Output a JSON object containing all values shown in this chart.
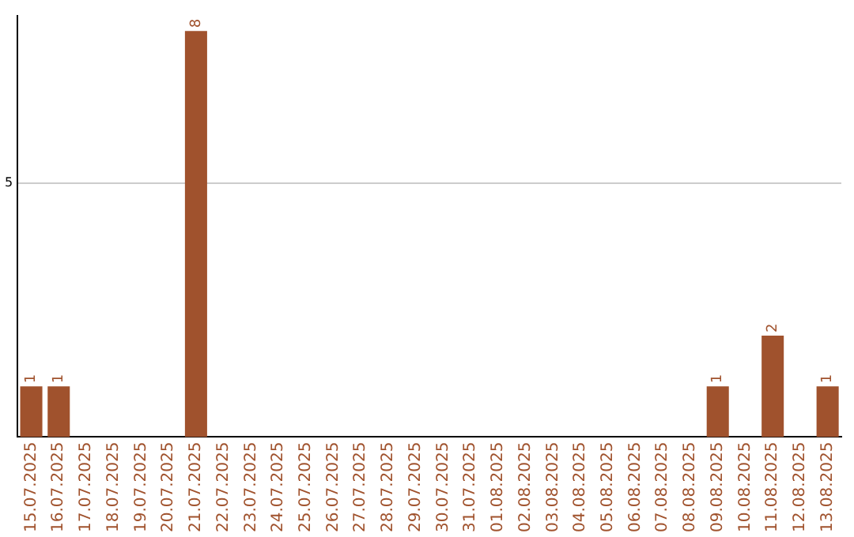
{
  "chart_data": {
    "type": "bar",
    "categories": [
      "15.07.2025",
      "16.07.2025",
      "17.07.2025",
      "18.07.2025",
      "19.07.2025",
      "20.07.2025",
      "21.07.2025",
      "22.07.2025",
      "23.07.2025",
      "24.07.2025",
      "25.07.2025",
      "26.07.2025",
      "27.07.2025",
      "28.07.2025",
      "29.07.2025",
      "30.07.2025",
      "31.07.2025",
      "01.08.2025",
      "02.08.2025",
      "03.08.2025",
      "04.08.2025",
      "05.08.2025",
      "06.08.2025",
      "07.08.2025",
      "08.08.2025",
      "09.08.2025",
      "10.08.2025",
      "11.08.2025",
      "12.08.2025",
      "13.08.2025"
    ],
    "values": [
      1,
      1,
      0,
      0,
      0,
      0,
      8,
      0,
      0,
      0,
      0,
      0,
      0,
      0,
      0,
      0,
      0,
      0,
      0,
      0,
      0,
      0,
      0,
      0,
      0,
      1,
      0,
      2,
      0,
      1
    ],
    "value_labels": [
      "1",
      "1",
      null,
      null,
      null,
      null,
      "8",
      null,
      null,
      null,
      null,
      null,
      null,
      null,
      null,
      null,
      null,
      null,
      null,
      null,
      null,
      null,
      null,
      null,
      null,
      "1",
      null,
      "2",
      null,
      "1"
    ],
    "color": "#a0522d",
    "ylim": [
      0,
      8.3
    ],
    "yticks": [
      5
    ],
    "grid": "y",
    "legend": false
  }
}
